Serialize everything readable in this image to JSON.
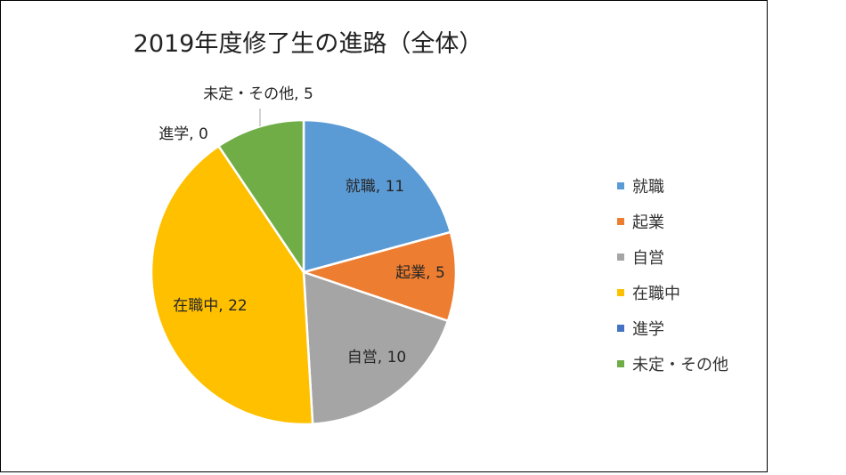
{
  "chart_data": {
    "type": "pie",
    "title": "2019年度修了生の進路（全体）",
    "categories": [
      "就職",
      "起業",
      "自営",
      "在職中",
      "進学",
      "未定・その他"
    ],
    "values": [
      11,
      5,
      10,
      22,
      0,
      5
    ],
    "data_labels": [
      "就職, 11",
      "起業, 5",
      "自営, 10",
      "在職中, 22",
      "進学, 0",
      "未定・その他, 5"
    ],
    "colors": [
      "#5B9BD5",
      "#ED7D31",
      "#A5A5A5",
      "#FFC000",
      "#4472C4",
      "#70AD47"
    ],
    "legend_position": "right",
    "start_angle": "12 o'clock",
    "direction": "clockwise"
  }
}
